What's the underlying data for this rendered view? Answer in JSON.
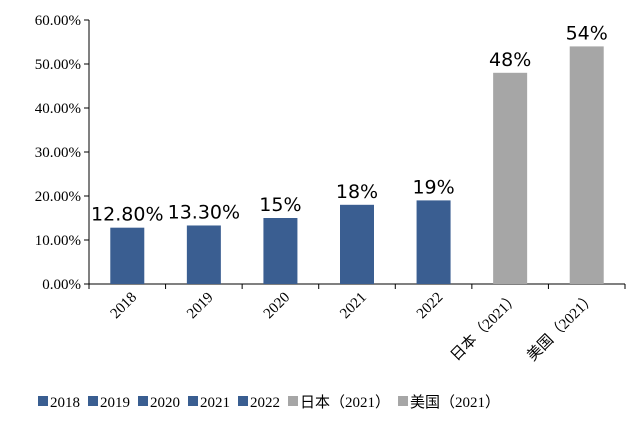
{
  "chart_data": {
    "type": "bar",
    "categories": [
      "2018",
      "2019",
      "2020",
      "2021",
      "2022",
      "日本（2021）",
      "美国（2021）"
    ],
    "values": [
      12.8,
      13.3,
      15,
      18,
      19,
      48,
      54
    ],
    "data_labels": [
      "12.80%",
      "13.30%",
      "15%",
      "18%",
      "19%",
      "48%",
      "54%"
    ],
    "colors": [
      "#3A5E91",
      "#3A5E91",
      "#3A5E91",
      "#3A5E91",
      "#3A5E91",
      "#A6A6A6",
      "#A6A6A6"
    ],
    "ylim": [
      0,
      60
    ],
    "yticks": [
      0,
      10,
      20,
      30,
      40,
      50,
      60
    ],
    "ytick_labels": [
      "0.00%",
      "10.00%",
      "20.00%",
      "30.00%",
      "40.00%",
      "50.00%",
      "60.00%"
    ],
    "grid": false,
    "legend_position": "bottom",
    "legend": [
      {
        "label": "2018",
        "color": "#3A5E91"
      },
      {
        "label": "2019",
        "color": "#3A5E91"
      },
      {
        "label": "2020",
        "color": "#3A5E91"
      },
      {
        "label": "2021",
        "color": "#3A5E91"
      },
      {
        "label": "2022",
        "color": "#3A5E91"
      },
      {
        "label": "日本（2021）",
        "color": "#A6A6A6"
      },
      {
        "label": "美国（2021）",
        "color": "#A6A6A6"
      }
    ]
  }
}
